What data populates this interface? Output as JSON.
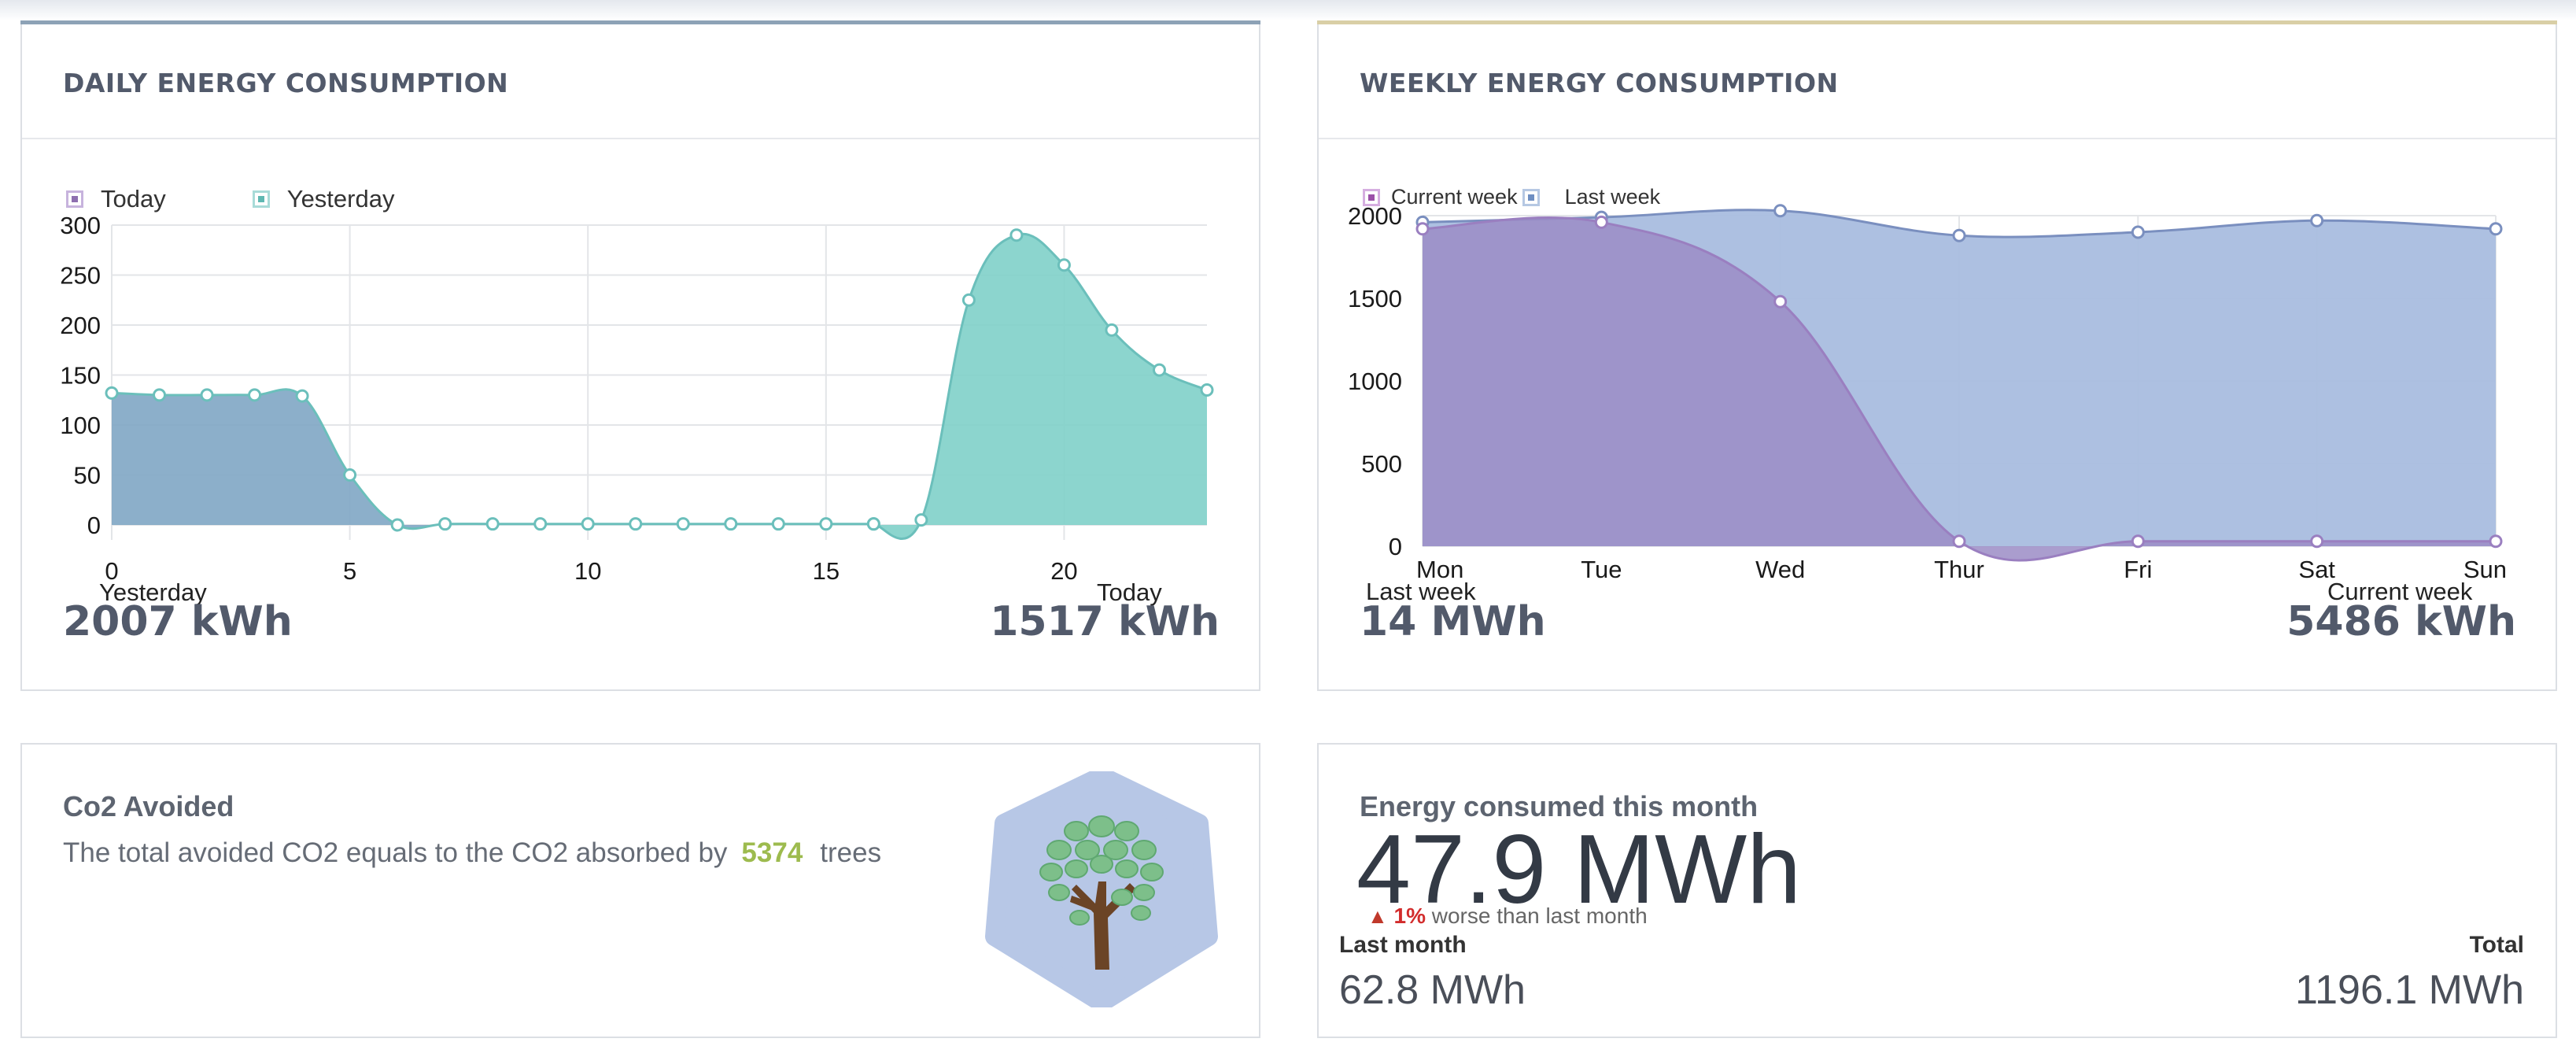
{
  "daily": {
    "title": "DAILY ENERGY CONSUMPTION",
    "legend": [
      {
        "label": "Today"
      },
      {
        "label": "Yesterday"
      }
    ],
    "footer": {
      "left_label": "Yesterday",
      "left_value": "2007 kWh",
      "right_label": "Today",
      "right_value": "1517 kWh"
    },
    "colors": {
      "accent": "#8da2b6",
      "yesterday_fill": "#7fa6c4",
      "today_fill": "#7fd0c9",
      "line": "#6bbfbb"
    }
  },
  "weekly": {
    "title": "WEEKLY ENERGY CONSUMPTION",
    "legend": [
      {
        "label": "Current week"
      },
      {
        "label": "Last week"
      }
    ],
    "footer": {
      "left_label": "Last week",
      "left_value": "14 MWh",
      "right_label": "Current week",
      "right_value": "5486 kWh"
    },
    "colors": {
      "accent": "#d9cfa6",
      "current_fill": "#9b8cc6",
      "last_fill": "#a9bddf",
      "line": "#7a8fbf"
    }
  },
  "co2": {
    "title": "Co2 Avoided",
    "text_before": "The total avoided CO2 equals to the CO2 absorbed by",
    "trees": "5374",
    "text_after": "trees",
    "icon": "tree-icon",
    "colors": {
      "hexagon": "#b7c7e6",
      "leaves": "#7dbf8a",
      "trunk": "#6b4426",
      "number": "#9dbb4e"
    }
  },
  "month": {
    "title": "Energy consumed this month",
    "value": "47.9 MWh",
    "change_pct": "1%",
    "change_text": "worse than last month",
    "last_month_label": "Last month",
    "last_month_value": "62.8 MWh",
    "total_label": "Total",
    "total_value": "1196.1 MWh"
  },
  "chart_data": [
    {
      "type": "area",
      "name": "daily",
      "x_ticks": [
        "0",
        "5",
        "10",
        "15",
        "20"
      ],
      "y_ticks": [
        "0",
        "50",
        "100",
        "150",
        "200",
        "250",
        "300"
      ],
      "xlim": [
        0,
        23
      ],
      "ylim": [
        -15,
        300
      ],
      "grid": true,
      "legend_position": "top-left",
      "series": [
        {
          "name": "Yesterday",
          "x": [
            0,
            1,
            2,
            3,
            4,
            5,
            6,
            7,
            8,
            9,
            10,
            11,
            12,
            13,
            14,
            15,
            16
          ],
          "values": [
            132,
            130,
            130,
            130,
            129,
            50,
            0,
            1,
            1,
            1,
            1,
            1,
            1,
            1,
            1,
            1,
            1
          ]
        },
        {
          "name": "Today",
          "x": [
            16,
            17,
            18,
            19,
            20,
            21,
            22,
            23
          ],
          "values": [
            1,
            5,
            225,
            290,
            260,
            195,
            155,
            135
          ]
        }
      ]
    },
    {
      "type": "area",
      "name": "weekly",
      "categories": [
        "Mon",
        "Tue",
        "Wed",
        "Thur",
        "Fri",
        "Sat",
        "Sun"
      ],
      "y_ticks": [
        "0",
        "500",
        "1000",
        "1500",
        "2000"
      ],
      "ylim": [
        0,
        2000
      ],
      "grid": true,
      "legend_position": "top-left",
      "series": [
        {
          "name": "Last week",
          "values": [
            1960,
            1990,
            2030,
            1880,
            1900,
            1970,
            1920
          ]
        },
        {
          "name": "Current week",
          "values": [
            1920,
            1960,
            1480,
            30,
            30,
            30,
            30
          ]
        }
      ]
    }
  ]
}
